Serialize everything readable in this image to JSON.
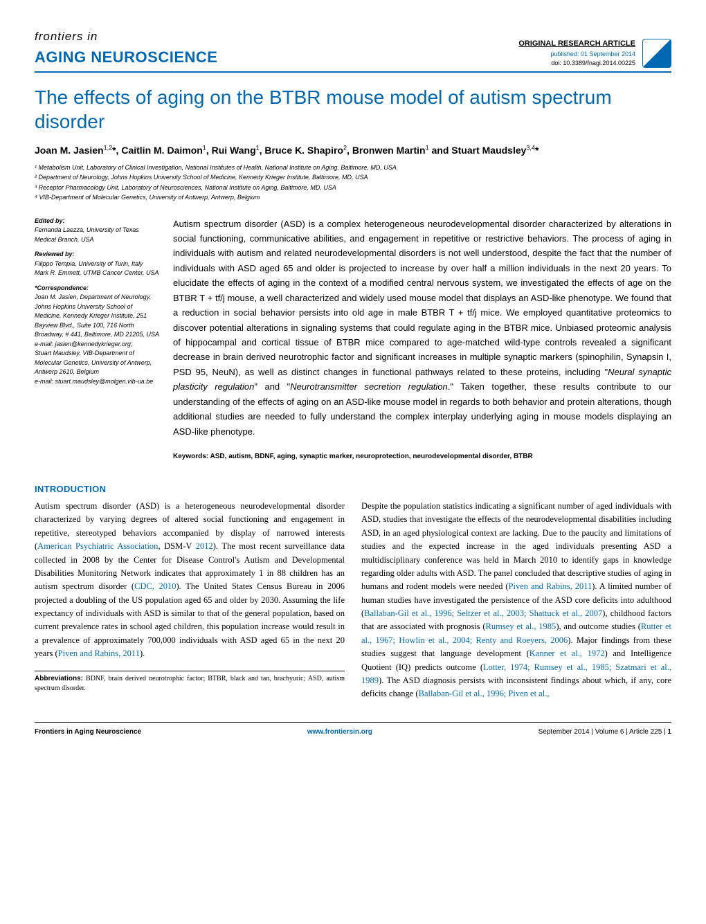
{
  "header": {
    "frontiers": "frontiers in",
    "journal": "AGING NEUROSCIENCE",
    "article_type": "ORIGINAL RESEARCH ARTICLE",
    "published": "published: 01 September 2014",
    "doi": "doi: 10.3389/fnagi.2014.00225",
    "accent_color": "#0068b3"
  },
  "title": "The effects of aging on the BTBR mouse model of autism spectrum disorder",
  "authors_html": "Joan M. Jasien<sup>1,2</sup>*, Caitlin M. Daimon<sup>1</sup>, Rui Wang<sup>1</sup>, Bruce K. Shapiro<sup>2</sup>, Bronwen Martin<sup>1</sup> and Stuart Maudsley<sup>3,4</sup>*",
  "affiliations": [
    "¹ Metabolism Unit, Laboratory of Clinical Investigation, National Institutes of Health, National Institute on Aging, Baltimore, MD, USA",
    "² Department of Neurology, Johns Hopkins University School of Medicine, Kennedy Krieger Institute, Baltimore, MD, USA",
    "³ Receptor Pharmacology Unit, Laboratory of Neurosciences, National Institute on Aging, Baltimore, MD, USA",
    "⁴ VIB-Department of Molecular Genetics, University of Antwerp, Antwerp, Belgium"
  ],
  "sidebar": {
    "edited_by_heading": "Edited by:",
    "edited_by": "Fernanda Laezza, University of Texas Medical Branch, USA",
    "reviewed_by_heading": "Reviewed by:",
    "reviewed_by_1": "Filippo Tempia, University of Turin, Italy",
    "reviewed_by_2": "Mark R. Emmett, UTMB Cancer Center, USA",
    "correspondence_heading": "*Correspondence:",
    "correspondence_1": "Joan M. Jasien, Department of Neurology, Johns Hopkins University School of Medicine, Kennedy Krieger Institute, 251 Bayview Blvd., Suite 100, 716 North Broadway, # 441, Baltimore, MD 21205, USA",
    "correspondence_1_email": "e-mail: jasien@kennedykrieger.org;",
    "correspondence_2": "Stuart Maudsley, VIB-Department of Molecular Genetics, University of Antwerp, Antwerp 2610, Belgium",
    "correspondence_2_email": "e-mail: stuart.maudsley@molgen.vib-ua.be"
  },
  "abstract": "Autism spectrum disorder (ASD) is a complex heterogeneous neurodevelopmental disorder characterized by alterations in social functioning, communicative abilities, and engagement in repetitive or restrictive behaviors. The process of aging in individuals with autism and related neurodevelopmental disorders is not well understood, despite the fact that the number of individuals with ASD aged 65 and older is projected to increase by over half a million individuals in the next 20 years. To elucidate the effects of aging in the context of a modified central nervous system, we investigated the effects of age on the BTBR T + tf/j mouse, a well characterized and widely used mouse model that displays an ASD-like phenotype. We found that a reduction in social behavior persists into old age in male BTBR T + tf/j mice. We employed quantitative proteomics to discover potential alterations in signaling systems that could regulate aging in the BTBR mice. Unbiased proteomic analysis of hippocampal and cortical tissue of BTBR mice compared to age-matched wild-type controls revealed a significant decrease in brain derived neurotrophic factor and significant increases in multiple synaptic markers (spinophilin, Synapsin I, PSD 95, NeuN), as well as distinct changes in functional pathways related to these proteins, including \"",
  "abstract_italic_1": "Neural synaptic plasticity regulation",
  "abstract_mid": "\" and \"",
  "abstract_italic_2": "Neurotransmitter secretion regulation",
  "abstract_tail": ".\" Taken together, these results contribute to our understanding of the effects of aging on an ASD-like mouse model in regards to both behavior and protein alterations, though additional studies are needed to fully understand the complex interplay underlying aging in mouse models displaying an ASD-like phenotype.",
  "keywords": "Keywords: ASD, autism, BDNF, aging, synaptic marker, neuroprotection, neurodevelopmental disorder, BTBR",
  "introduction_heading": "INTRODUCTION",
  "body_para1_a": "Autism spectrum disorder (ASD) is a heterogeneous neurodevelopmental disorder characterized by varying degrees of altered social functioning and engagement in repetitive, stereotyped behaviors accompanied by display of narrowed interests (",
  "body_para1_ref1": "American Psychiatric Association",
  "body_para1_b": ", DSM-V ",
  "body_para1_ref2": "2012",
  "body_para1_c": "). The most recent surveillance data collected in 2008 by the Center for Disease Control's Autism and Developmental Disabilities Monitoring Network indicates that approximately 1 in 88 children has an autism spectrum disorder (",
  "body_para1_ref3": "CDC, 2010",
  "body_para1_d": "). The United States Census Bureau in 2006 projected a doubling of the US population aged 65 and older by 2030. Assuming the life expectancy of individuals with ASD is similar to that of the general population, based on current prevalence rates in school aged children, this population increase would result in a prevalence of approximately 700,000 individuals with ASD aged 65 in the next 20 years (",
  "body_para1_ref4": "Piven and Rabins, 2011",
  "body_para1_e": ").",
  "body_para2_a": "Despite the population statistics indicating a significant number of aged individuals with ASD, studies that investigate the effects of the neurodevelopmental disabilities including ASD, in an aged physiological context are lacking. Due to the paucity and limitations of studies and the expected increase in the aged individuals presenting ASD a multidisciplinary conference was held in March 2010 to identify gaps in knowledge regarding older adults with ASD. The panel concluded that descriptive studies of aging in humans and rodent models were needed (",
  "body_para2_ref1": "Piven and Rabins, 2011",
  "body_para2_b": "). A limited number of human studies have investigated the persistence of the ASD core deficits into adulthood (",
  "body_para2_ref2": "Ballaban-Gil et al., 1996; Seltzer et al., 2003; Shattuck et al., 2007",
  "body_para2_c": "), childhood factors that are associated with prognosis (",
  "body_para2_ref3": "Rumsey et al., 1985",
  "body_para2_d": "), and outcome studies (",
  "body_para2_ref4": "Rutter et al., 1967; Howlin et al., 2004; Renty and Roeyers, 2006",
  "body_para2_e": "). Major findings from these studies suggest that language development (",
  "body_para2_ref5": "Kanner et al., 1972",
  "body_para2_f": ") and Intelligence Quotient (IQ) predicts outcome (",
  "body_para2_ref6": "Lotter, 1974; Rumsey et al., 1985; Szatmari et al., 1989",
  "body_para2_g": "). The ASD diagnosis persists with inconsistent findings about which, if any, core deficits change (",
  "body_para2_ref7": "Ballaban-Gil et al., 1996; Piven et al.,",
  "abbrev_label": "Abbreviations:",
  "abbrev_text": " BDNF, brain derived neurotrophic factor; BTBR, black and tan, brachyuric; ASD, autism spectrum disorder.",
  "footer": {
    "left": "Frontiers in Aging Neuroscience",
    "center": "www.frontiersin.org",
    "right_a": "September 2014 | Volume 6 | Article 225 | ",
    "right_b": "1"
  }
}
